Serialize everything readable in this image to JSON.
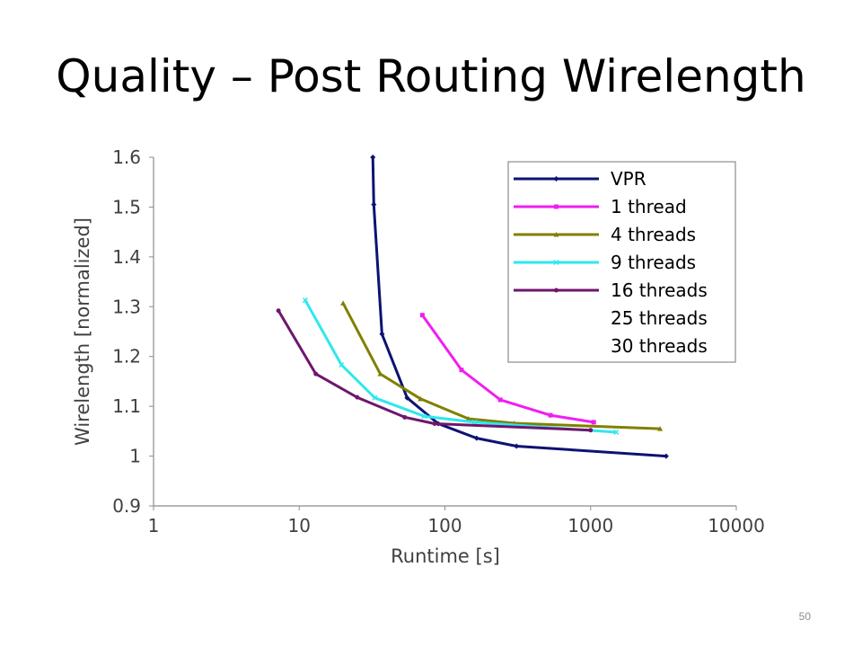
{
  "slide": {
    "title": "Quality – Post Routing Wirelength",
    "page_number": "50"
  },
  "chart_data": {
    "type": "line",
    "title": "",
    "xlabel": "Runtime [s]",
    "ylabel": "Wirelength [normalized]",
    "xscale": "log",
    "xlim": [
      1,
      10000
    ],
    "ylim": [
      0.9,
      1.6
    ],
    "xticks": [
      1,
      10,
      100,
      1000,
      10000
    ],
    "xtick_labels": [
      "1",
      "10",
      "100",
      "1000",
      "10000"
    ],
    "yticks": [
      0.9,
      1,
      1.1,
      1.2,
      1.3,
      1.4,
      1.5,
      1.6
    ],
    "ytick_labels": [
      "0.9",
      "1",
      "1.1",
      "1.2",
      "1.3",
      "1.4",
      "1.5",
      "1.6"
    ],
    "grid": false,
    "legend_position": "top-right",
    "series": [
      {
        "name": "VPR",
        "color": "#0d1273",
        "marker": "diamond",
        "x": [
          32,
          32.5,
          37,
          55,
          90,
          165,
          310,
          3300
        ],
        "y": [
          1.6,
          1.505,
          1.245,
          1.117,
          1.065,
          1.036,
          1.02,
          1.0
        ]
      },
      {
        "name": "1 thread",
        "color": "#f01ef0",
        "marker": "square",
        "x": [
          70,
          130,
          240,
          530,
          1050
        ],
        "y": [
          1.283,
          1.173,
          1.113,
          1.082,
          1.068
        ]
      },
      {
        "name": "4 threads",
        "color": "#808000",
        "marker": "triangle",
        "x": [
          20,
          36,
          68,
          145,
          300,
          3000
        ],
        "y": [
          1.307,
          1.165,
          1.115,
          1.075,
          1.066,
          1.055
        ]
      },
      {
        "name": "9 threads",
        "color": "#2ee8ee",
        "marker": "x",
        "x": [
          11,
          19.5,
          33,
          72,
          160,
          1500
        ],
        "y": [
          1.313,
          1.183,
          1.117,
          1.08,
          1.068,
          1.048
        ]
      },
      {
        "name": "16 threads",
        "color": "#6e166e",
        "marker": "star",
        "x": [
          7.2,
          13,
          25,
          53,
          85,
          1000
        ],
        "y": [
          1.292,
          1.165,
          1.118,
          1.078,
          1.065,
          1.052
        ]
      },
      {
        "name": "25 threads",
        "color": "#ffffff",
        "marker": "none",
        "x": [],
        "y": []
      },
      {
        "name": "30 threads",
        "color": "#ffffff",
        "marker": "none",
        "x": [],
        "y": []
      }
    ]
  }
}
